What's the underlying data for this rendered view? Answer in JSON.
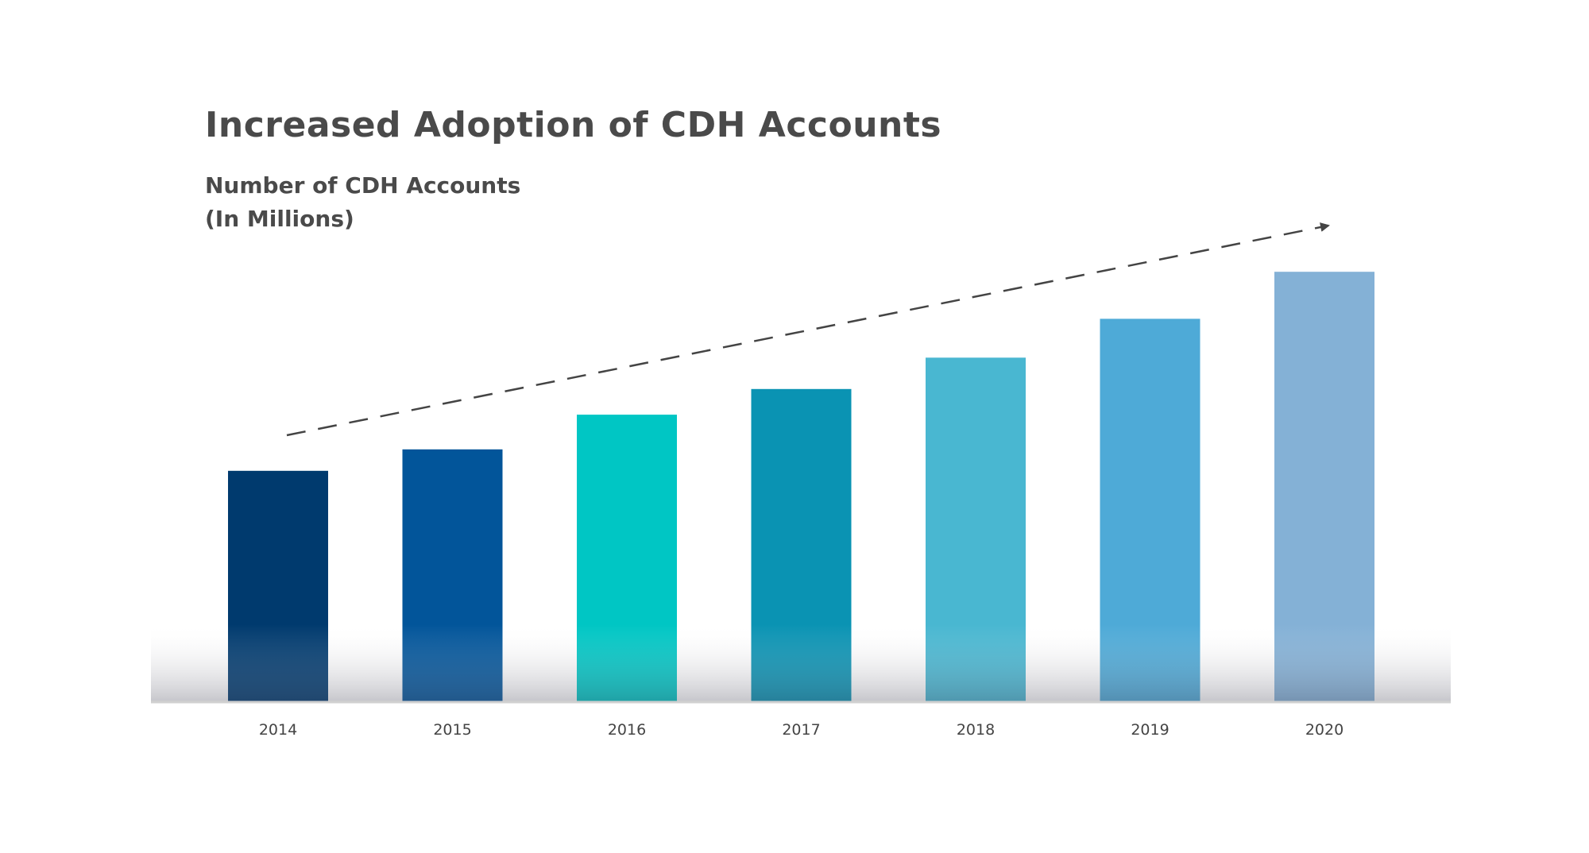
{
  "chart_data": {
    "type": "bar",
    "title": "Increased Adoption of CDH Accounts",
    "subtitle_lines": [
      "Number of CDH Accounts",
      "(In Millions)"
    ],
    "categories": [
      "2014",
      "2015",
      "2016",
      "2017",
      "2018",
      "2019",
      "2020"
    ],
    "values": [
      28,
      30.6,
      34.8,
      37.9,
      41.7,
      46.4,
      52.1
    ],
    "ylim": [
      0,
      60
    ],
    "grid": false,
    "legend": false,
    "trend_arrow": true,
    "colors": [
      "#003a6e",
      "#02559a",
      "#00c6c4",
      "#0a93b3",
      "#49b7d1",
      "#4eaad7",
      "#84b1d6"
    ]
  }
}
